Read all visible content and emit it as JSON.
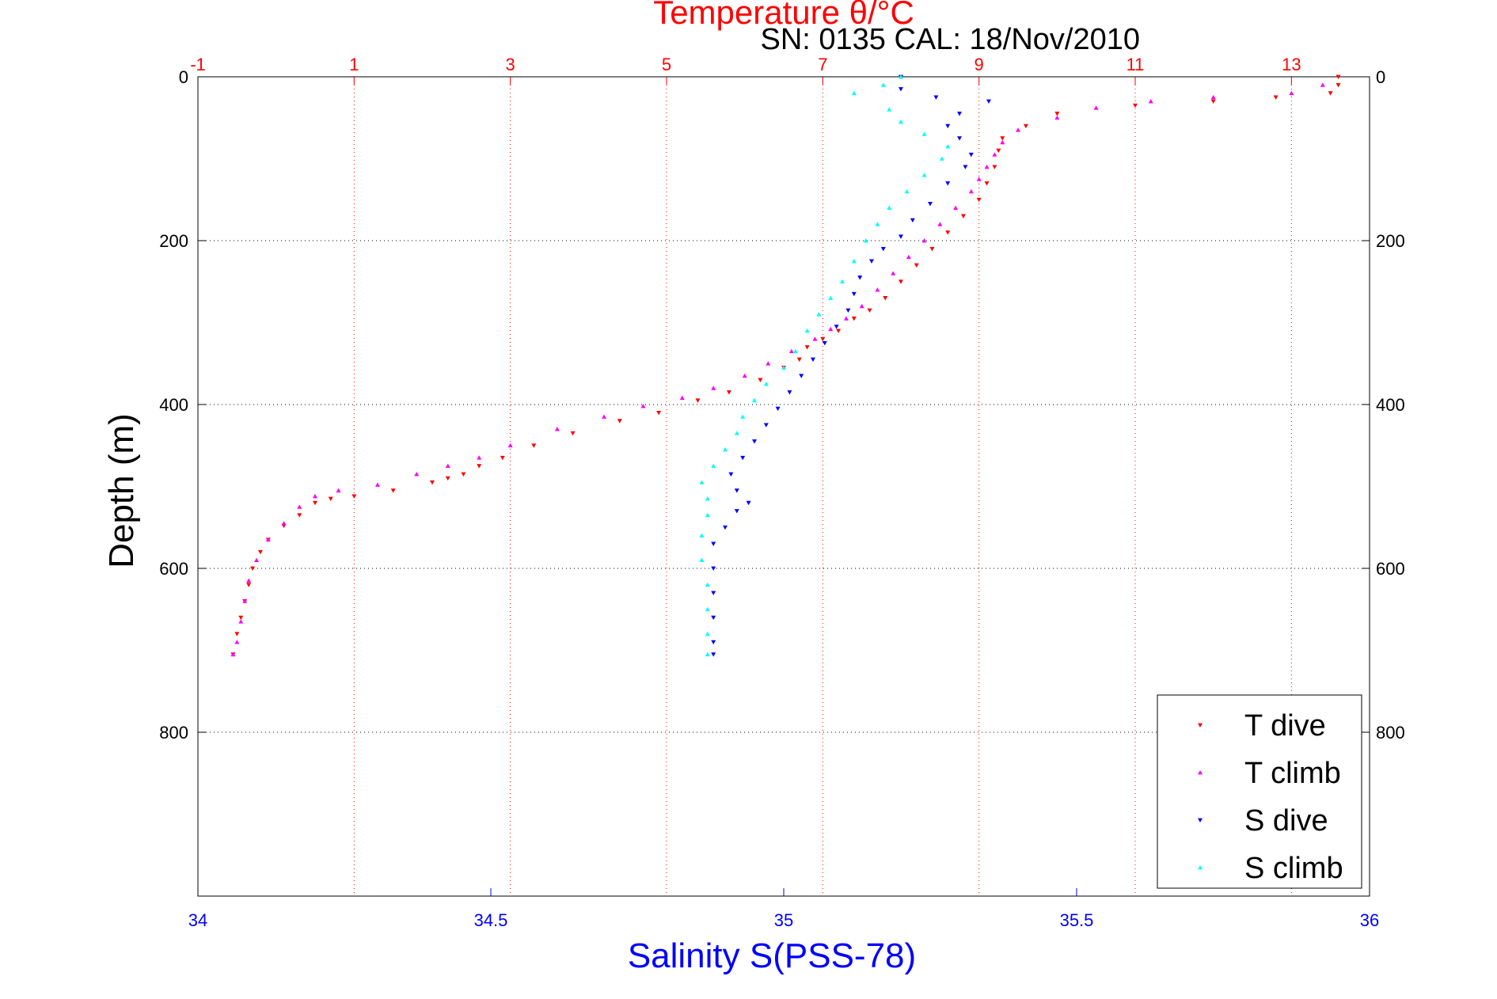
{
  "chart_data": {
    "type": "scatter",
    "title": "Temperature θ/°C",
    "subtitle": "SN: 0135  CAL: 18/Nov/2010",
    "ylabel": "Depth (m)",
    "xlabel": "Salinity S(PSS-78)",
    "ylim": [
      0,
      1000
    ],
    "y_reversed": true,
    "depth_ticks": [
      "0",
      "200",
      "400",
      "600",
      "800"
    ],
    "temp_axis": {
      "lim": [
        -1,
        14
      ],
      "ticks": [
        "-1",
        "1",
        "3",
        "5",
        "7",
        "9",
        "11",
        "13"
      ],
      "color": "#ff0000"
    },
    "sal_axis": {
      "lim": [
        34,
        36
      ],
      "ticks": [
        "34",
        "34.5",
        "35",
        "35.5",
        "36"
      ],
      "color": "#0000ff"
    },
    "grid": true,
    "legend_position": "bottom-right",
    "series": [
      {
        "name": "T dive",
        "axis": "temp",
        "color": "#ff0000",
        "marker": "triangle-down",
        "points": [
          [
            13.6,
            0
          ],
          [
            13.6,
            10
          ],
          [
            13.5,
            20
          ],
          [
            12.8,
            25
          ],
          [
            12.0,
            30
          ],
          [
            11.0,
            35
          ],
          [
            10.0,
            45
          ],
          [
            9.6,
            60
          ],
          [
            9.3,
            75
          ],
          [
            9.25,
            90
          ],
          [
            9.2,
            110
          ],
          [
            9.1,
            130
          ],
          [
            9.0,
            150
          ],
          [
            8.8,
            170
          ],
          [
            8.6,
            190
          ],
          [
            8.4,
            210
          ],
          [
            8.2,
            230
          ],
          [
            8.0,
            250
          ],
          [
            7.8,
            270
          ],
          [
            7.6,
            285
          ],
          [
            7.4,
            295
          ],
          [
            7.2,
            310
          ],
          [
            7.0,
            320
          ],
          [
            6.8,
            330
          ],
          [
            6.7,
            345
          ],
          [
            6.5,
            355
          ],
          [
            6.2,
            370
          ],
          [
            5.8,
            385
          ],
          [
            5.4,
            395
          ],
          [
            4.9,
            410
          ],
          [
            4.4,
            420
          ],
          [
            3.8,
            435
          ],
          [
            3.3,
            450
          ],
          [
            2.9,
            465
          ],
          [
            2.6,
            475
          ],
          [
            2.4,
            485
          ],
          [
            2.2,
            490
          ],
          [
            2.0,
            495
          ],
          [
            1.5,
            505
          ],
          [
            1.0,
            512
          ],
          [
            0.7,
            515
          ],
          [
            0.5,
            520
          ],
          [
            0.3,
            535
          ],
          [
            0.1,
            548
          ],
          [
            -0.1,
            565
          ],
          [
            -0.2,
            580
          ],
          [
            -0.3,
            600
          ],
          [
            -0.35,
            620
          ],
          [
            -0.4,
            640
          ],
          [
            -0.45,
            660
          ],
          [
            -0.5,
            680
          ],
          [
            -0.55,
            705
          ]
        ]
      },
      {
        "name": "T climb",
        "axis": "temp",
        "color": "#ff00ff",
        "marker": "triangle-up",
        "points": [
          [
            13.4,
            10
          ],
          [
            13.0,
            20
          ],
          [
            12.0,
            25
          ],
          [
            11.2,
            30
          ],
          [
            10.5,
            38
          ],
          [
            10.0,
            50
          ],
          [
            9.5,
            65
          ],
          [
            9.3,
            80
          ],
          [
            9.2,
            95
          ],
          [
            9.1,
            110
          ],
          [
            9.0,
            125
          ],
          [
            8.9,
            140
          ],
          [
            8.7,
            160
          ],
          [
            8.5,
            180
          ],
          [
            8.3,
            200
          ],
          [
            8.1,
            220
          ],
          [
            7.9,
            240
          ],
          [
            7.7,
            260
          ],
          [
            7.5,
            280
          ],
          [
            7.3,
            295
          ],
          [
            7.1,
            308
          ],
          [
            6.9,
            320
          ],
          [
            6.6,
            335
          ],
          [
            6.3,
            350
          ],
          [
            6.0,
            365
          ],
          [
            5.6,
            380
          ],
          [
            5.2,
            392
          ],
          [
            4.7,
            402
          ],
          [
            4.2,
            415
          ],
          [
            3.6,
            430
          ],
          [
            3.0,
            450
          ],
          [
            2.6,
            465
          ],
          [
            2.2,
            475
          ],
          [
            1.8,
            485
          ],
          [
            1.3,
            498
          ],
          [
            0.8,
            505
          ],
          [
            0.5,
            512
          ],
          [
            0.3,
            525
          ],
          [
            0.1,
            545
          ],
          [
            -0.1,
            565
          ],
          [
            -0.25,
            590
          ],
          [
            -0.35,
            615
          ],
          [
            -0.4,
            640
          ],
          [
            -0.45,
            665
          ],
          [
            -0.5,
            690
          ],
          [
            -0.55,
            705
          ]
        ]
      },
      {
        "name": "S dive",
        "axis": "sal",
        "color": "#0000ff",
        "marker": "triangle-down",
        "points": [
          [
            35.2,
            0
          ],
          [
            35.2,
            15
          ],
          [
            35.26,
            25
          ],
          [
            35.35,
            30
          ],
          [
            35.3,
            45
          ],
          [
            35.28,
            60
          ],
          [
            35.3,
            75
          ],
          [
            35.32,
            95
          ],
          [
            35.31,
            110
          ],
          [
            35.28,
            130
          ],
          [
            35.25,
            155
          ],
          [
            35.22,
            175
          ],
          [
            35.2,
            195
          ],
          [
            35.17,
            210
          ],
          [
            35.15,
            225
          ],
          [
            35.13,
            245
          ],
          [
            35.12,
            265
          ],
          [
            35.11,
            285
          ],
          [
            35.09,
            305
          ],
          [
            35.07,
            325
          ],
          [
            35.05,
            345
          ],
          [
            35.03,
            365
          ],
          [
            35.01,
            385
          ],
          [
            34.99,
            405
          ],
          [
            34.97,
            425
          ],
          [
            34.95,
            445
          ],
          [
            34.93,
            465
          ],
          [
            34.91,
            485
          ],
          [
            34.92,
            505
          ],
          [
            34.94,
            520
          ],
          [
            34.92,
            530
          ],
          [
            34.9,
            550
          ],
          [
            34.88,
            570
          ],
          [
            34.88,
            600
          ],
          [
            34.88,
            630
          ],
          [
            34.88,
            660
          ],
          [
            34.88,
            690
          ],
          [
            34.88,
            705
          ]
        ]
      },
      {
        "name": "S climb",
        "axis": "sal",
        "color": "#00ffff",
        "marker": "triangle-up",
        "points": [
          [
            35.2,
            0
          ],
          [
            35.17,
            10
          ],
          [
            35.12,
            20
          ],
          [
            35.18,
            40
          ],
          [
            35.2,
            55
          ],
          [
            35.24,
            70
          ],
          [
            35.28,
            85
          ],
          [
            35.27,
            100
          ],
          [
            35.24,
            120
          ],
          [
            35.21,
            140
          ],
          [
            35.18,
            160
          ],
          [
            35.16,
            180
          ],
          [
            35.14,
            200
          ],
          [
            35.12,
            225
          ],
          [
            35.1,
            250
          ],
          [
            35.08,
            270
          ],
          [
            35.06,
            290
          ],
          [
            35.04,
            310
          ],
          [
            35.02,
            335
          ],
          [
            35.0,
            355
          ],
          [
            34.97,
            375
          ],
          [
            34.95,
            395
          ],
          [
            34.93,
            415
          ],
          [
            34.92,
            435
          ],
          [
            34.9,
            455
          ],
          [
            34.88,
            475
          ],
          [
            34.86,
            495
          ],
          [
            34.87,
            515
          ],
          [
            34.87,
            535
          ],
          [
            34.86,
            560
          ],
          [
            34.86,
            590
          ],
          [
            34.87,
            620
          ],
          [
            34.87,
            650
          ],
          [
            34.87,
            680
          ],
          [
            34.87,
            705
          ]
        ]
      }
    ]
  }
}
